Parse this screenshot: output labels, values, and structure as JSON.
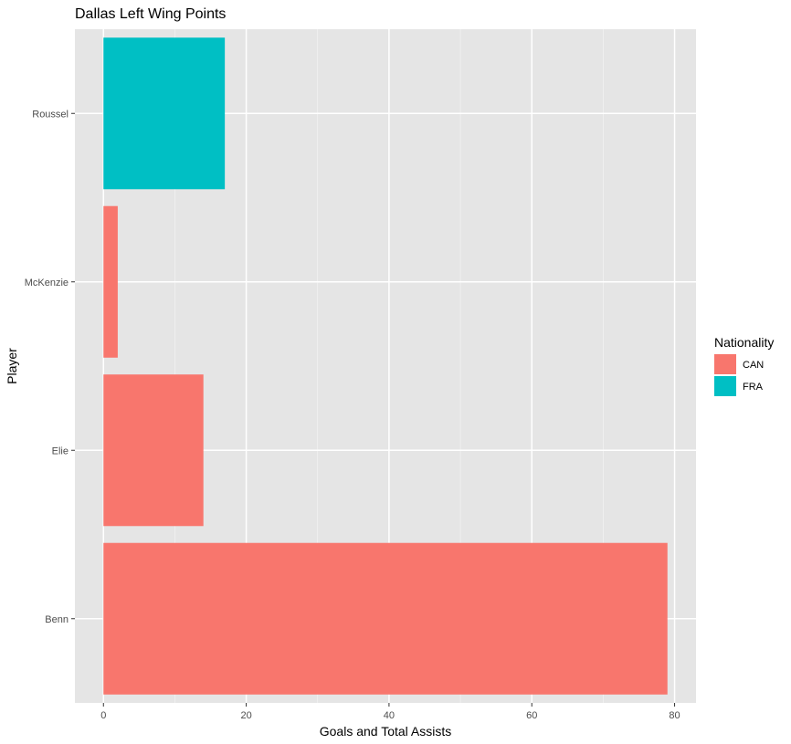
{
  "chart_data": {
    "type": "bar",
    "orientation": "horizontal",
    "title": "Dallas Left Wing Points",
    "xlabel": "Goals and Total Assists",
    "ylabel": "Player",
    "categories": [
      "Benn",
      "Elie",
      "McKenzie",
      "Roussel"
    ],
    "values": [
      79,
      14,
      2,
      17
    ],
    "groups": [
      "CAN",
      "CAN",
      "CAN",
      "FRA"
    ],
    "xlim": [
      -4,
      83
    ],
    "xticks": [
      0,
      20,
      40,
      60,
      80
    ],
    "grid": true,
    "legend": {
      "title": "Nationality",
      "position": "right",
      "items": [
        {
          "label": "CAN",
          "color": "#F8766D"
        },
        {
          "label": "FRA",
          "color": "#00BFC4"
        }
      ]
    }
  }
}
